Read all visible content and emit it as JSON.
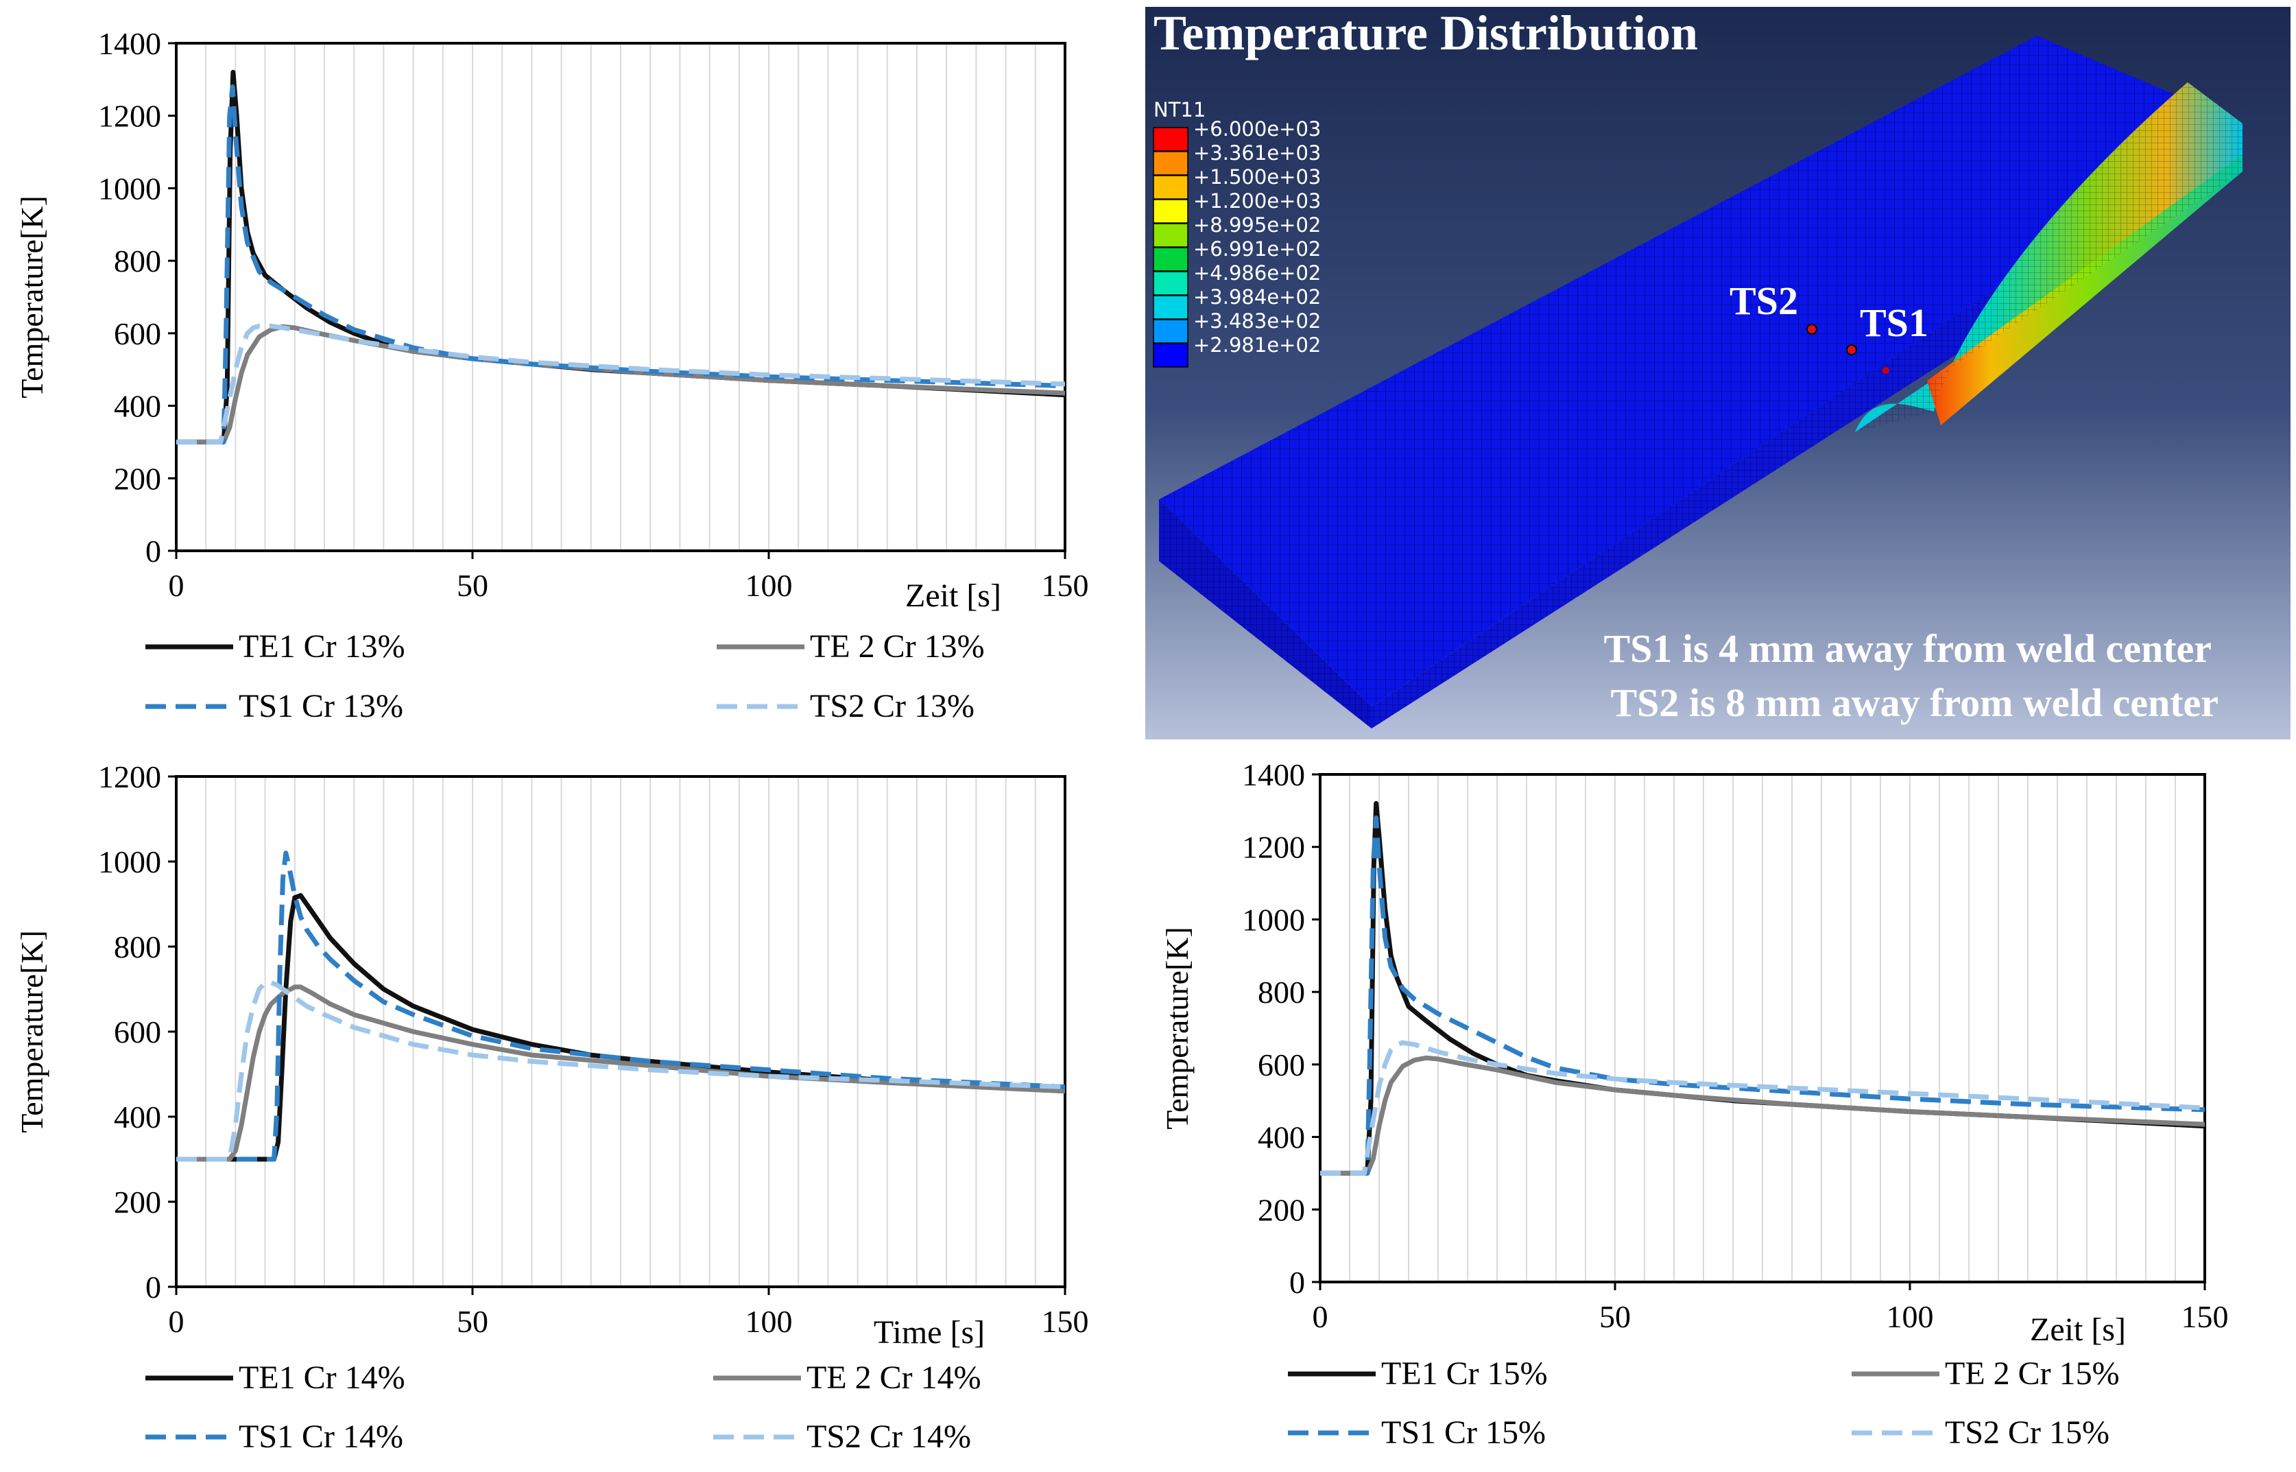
{
  "colors": {
    "te1": "#111111",
    "te2": "#7f7f7f",
    "ts1": "#2e7fc6",
    "ts2": "#9fc6ea",
    "grid": "#d9d9d9"
  },
  "chart_data": [
    {
      "type": "line",
      "ylabel": "Temperature[K]",
      "xlabel": "Zeit [s]",
      "xlim": [
        0,
        150
      ],
      "ylim": [
        0,
        1400
      ],
      "xticks": [
        0,
        50,
        100,
        150
      ],
      "yticks": [
        0,
        200,
        400,
        600,
        800,
        1000,
        1200,
        1400
      ],
      "legend_position": "bottom",
      "series": [
        {
          "name": "TE1 Cr 13%",
          "key": "te1",
          "style": "solid",
          "x": [
            0,
            8,
            8.6,
            9.1,
            9.6,
            10.2,
            11,
            12,
            13,
            15,
            18,
            22,
            26,
            30,
            35,
            40,
            50,
            60,
            70,
            80,
            100,
            120,
            150
          ],
          "y": [
            300,
            300,
            450,
            1100,
            1320,
            1200,
            1000,
            880,
            820,
            760,
            720,
            670,
            630,
            600,
            570,
            550,
            530,
            515,
            500,
            490,
            470,
            455,
            430
          ]
        },
        {
          "name": "TE 2 Cr 13%",
          "key": "te2",
          "style": "solid",
          "x": [
            0,
            8,
            9,
            10,
            11,
            12,
            14,
            16,
            18,
            20,
            24,
            30,
            40,
            50,
            60,
            80,
            100,
            120,
            150
          ],
          "y": [
            300,
            300,
            340,
            420,
            490,
            540,
            590,
            610,
            618,
            615,
            600,
            580,
            550,
            530,
            515,
            490,
            470,
            455,
            435
          ]
        },
        {
          "name": "TS1 Cr 13%",
          "key": "ts1",
          "style": "dash",
          "x": [
            0,
            8,
            8.4,
            9,
            9.5,
            10,
            11,
            12,
            14,
            16,
            20,
            25,
            30,
            40,
            50,
            60,
            80,
            100,
            120,
            150
          ],
          "y": [
            300,
            300,
            600,
            1200,
            1280,
            1150,
            950,
            850,
            770,
            740,
            700,
            650,
            610,
            560,
            530,
            515,
            495,
            480,
            470,
            455
          ]
        },
        {
          "name": "TS2 Cr 13%",
          "key": "ts2",
          "style": "dash",
          "x": [
            0,
            7.5,
            8.5,
            10,
            11,
            12,
            13,
            14,
            16,
            18,
            20,
            25,
            30,
            40,
            50,
            60,
            80,
            100,
            120,
            150
          ],
          "y": [
            300,
            300,
            380,
            500,
            560,
            600,
            615,
            620,
            620,
            615,
            610,
            595,
            580,
            555,
            535,
            520,
            500,
            485,
            475,
            460
          ]
        }
      ]
    },
    {
      "type": "line",
      "ylabel": "Temperature[K]",
      "xlabel": "Time [s]",
      "xlim": [
        0,
        150
      ],
      "ylim": [
        0,
        1200
      ],
      "xticks": [
        0,
        50,
        100,
        150
      ],
      "yticks": [
        0,
        200,
        400,
        600,
        800,
        1000,
        1200
      ],
      "legend_position": "bottom",
      "series": [
        {
          "name": "TE1 Cr 14%",
          "key": "te1",
          "style": "solid",
          "x": [
            0,
            16.5,
            17.2,
            17.8,
            18.5,
            19.3,
            20,
            21,
            22,
            24,
            26,
            30,
            35,
            40,
            50,
            60,
            70,
            80,
            100,
            120,
            150
          ],
          "y": [
            300,
            300,
            340,
            500,
            700,
            860,
            915,
            920,
            900,
            860,
            820,
            760,
            700,
            660,
            605,
            570,
            545,
            530,
            505,
            485,
            460
          ]
        },
        {
          "name": "TE 2 Cr 14%",
          "key": "te2",
          "style": "solid",
          "x": [
            0,
            9,
            10,
            11,
            12,
            13,
            14,
            15,
            16,
            18,
            20,
            21,
            23,
            26,
            30,
            40,
            50,
            60,
            80,
            100,
            120,
            150
          ],
          "y": [
            300,
            300,
            320,
            380,
            460,
            540,
            600,
            640,
            665,
            690,
            705,
            705,
            690,
            665,
            640,
            600,
            570,
            545,
            520,
            495,
            480,
            460
          ]
        },
        {
          "name": "TS1 Cr 14%",
          "key": "ts1",
          "style": "dash",
          "x": [
            0,
            16.5,
            17,
            17.5,
            18,
            18.5,
            19,
            20,
            21,
            22,
            24,
            26,
            30,
            35,
            40,
            50,
            60,
            80,
            100,
            120,
            150
          ],
          "y": [
            300,
            300,
            420,
            750,
            960,
            1020,
            990,
            920,
            870,
            840,
            800,
            770,
            720,
            670,
            640,
            590,
            560,
            530,
            510,
            490,
            470
          ]
        },
        {
          "name": "TS2 Cr 14%",
          "key": "ts2",
          "style": "dash",
          "x": [
            0,
            9,
            10,
            11,
            12,
            13,
            14,
            15,
            16,
            17,
            18,
            20,
            22,
            25,
            30,
            40,
            50,
            60,
            80,
            100,
            120,
            150
          ],
          "y": [
            300,
            300,
            380,
            500,
            600,
            660,
            700,
            715,
            715,
            710,
            700,
            680,
            660,
            640,
            610,
            570,
            545,
            530,
            510,
            495,
            485,
            470
          ]
        }
      ]
    },
    {
      "type": "line",
      "ylabel": "Temperature[K]",
      "xlabel": "Zeit [s]",
      "xlim": [
        0,
        150
      ],
      "ylim": [
        0,
        1400
      ],
      "xticks": [
        0,
        50,
        100,
        150
      ],
      "yticks": [
        0,
        200,
        400,
        600,
        800,
        1000,
        1200,
        1400
      ],
      "legend_position": "bottom",
      "series": [
        {
          "name": "TE1 Cr 15%",
          "key": "te1",
          "style": "solid",
          "x": [
            0,
            8,
            8.6,
            9.1,
            9.5,
            10,
            11,
            12,
            13,
            15,
            18,
            22,
            26,
            30,
            35,
            40,
            50,
            60,
            70,
            80,
            100,
            120,
            150
          ],
          "y": [
            300,
            300,
            500,
            1150,
            1320,
            1230,
            1030,
            900,
            840,
            760,
            720,
            670,
            630,
            600,
            570,
            555,
            530,
            515,
            500,
            490,
            470,
            455,
            430
          ]
        },
        {
          "name": "TE 2 Cr 15%",
          "key": "te2",
          "style": "solid",
          "x": [
            0,
            8,
            9,
            10,
            11,
            12,
            14,
            16,
            18,
            20,
            24,
            30,
            40,
            50,
            60,
            80,
            100,
            120,
            150
          ],
          "y": [
            300,
            300,
            340,
            430,
            500,
            550,
            595,
            612,
            618,
            615,
            602,
            585,
            550,
            530,
            515,
            490,
            470,
            455,
            435
          ]
        },
        {
          "name": "TS1 Cr 15%",
          "key": "ts1",
          "style": "dash",
          "x": [
            0,
            8,
            8.4,
            9,
            9.5,
            10,
            11,
            12,
            14,
            16,
            20,
            25,
            30,
            35,
            40,
            50,
            60,
            80,
            100,
            120,
            150
          ],
          "y": [
            300,
            300,
            600,
            1150,
            1280,
            1150,
            950,
            870,
            810,
            780,
            740,
            700,
            660,
            620,
            590,
            560,
            545,
            525,
            505,
            490,
            475
          ]
        },
        {
          "name": "TS2 Cr 15%",
          "key": "ts2",
          "style": "dash",
          "x": [
            0,
            7.5,
            8.5,
            10,
            11,
            12,
            13,
            14,
            16,
            18,
            20,
            25,
            30,
            40,
            50,
            60,
            80,
            100,
            120,
            150
          ],
          "y": [
            300,
            300,
            400,
            540,
            600,
            640,
            655,
            660,
            655,
            645,
            635,
            615,
            600,
            575,
            560,
            550,
            535,
            520,
            505,
            480
          ]
        }
      ]
    }
  ],
  "fe_model": {
    "title": "Temperature Distribution",
    "legend_title": "NT11",
    "legend_values": [
      "+6.000e+03",
      "+3.361e+03",
      "+1.500e+03",
      "+1.200e+03",
      "+8.995e+02",
      "+6.991e+02",
      "+4.986e+02",
      "+3.984e+02",
      "+3.483e+02",
      "+2.981e+02"
    ],
    "legend_colors": [
      "#ff0000",
      "#ff8c00",
      "#ffc000",
      "#ffff00",
      "#8ce600",
      "#00d23c",
      "#00e6b4",
      "#00d2e6",
      "#0096ff",
      "#0000ff"
    ],
    "label_ts2": "TS2",
    "label_ts1": "TS1",
    "note_ts1": "TS1 is 4 mm away from weld center",
    "note_ts2": "TS2 is 8 mm away from weld center"
  }
}
